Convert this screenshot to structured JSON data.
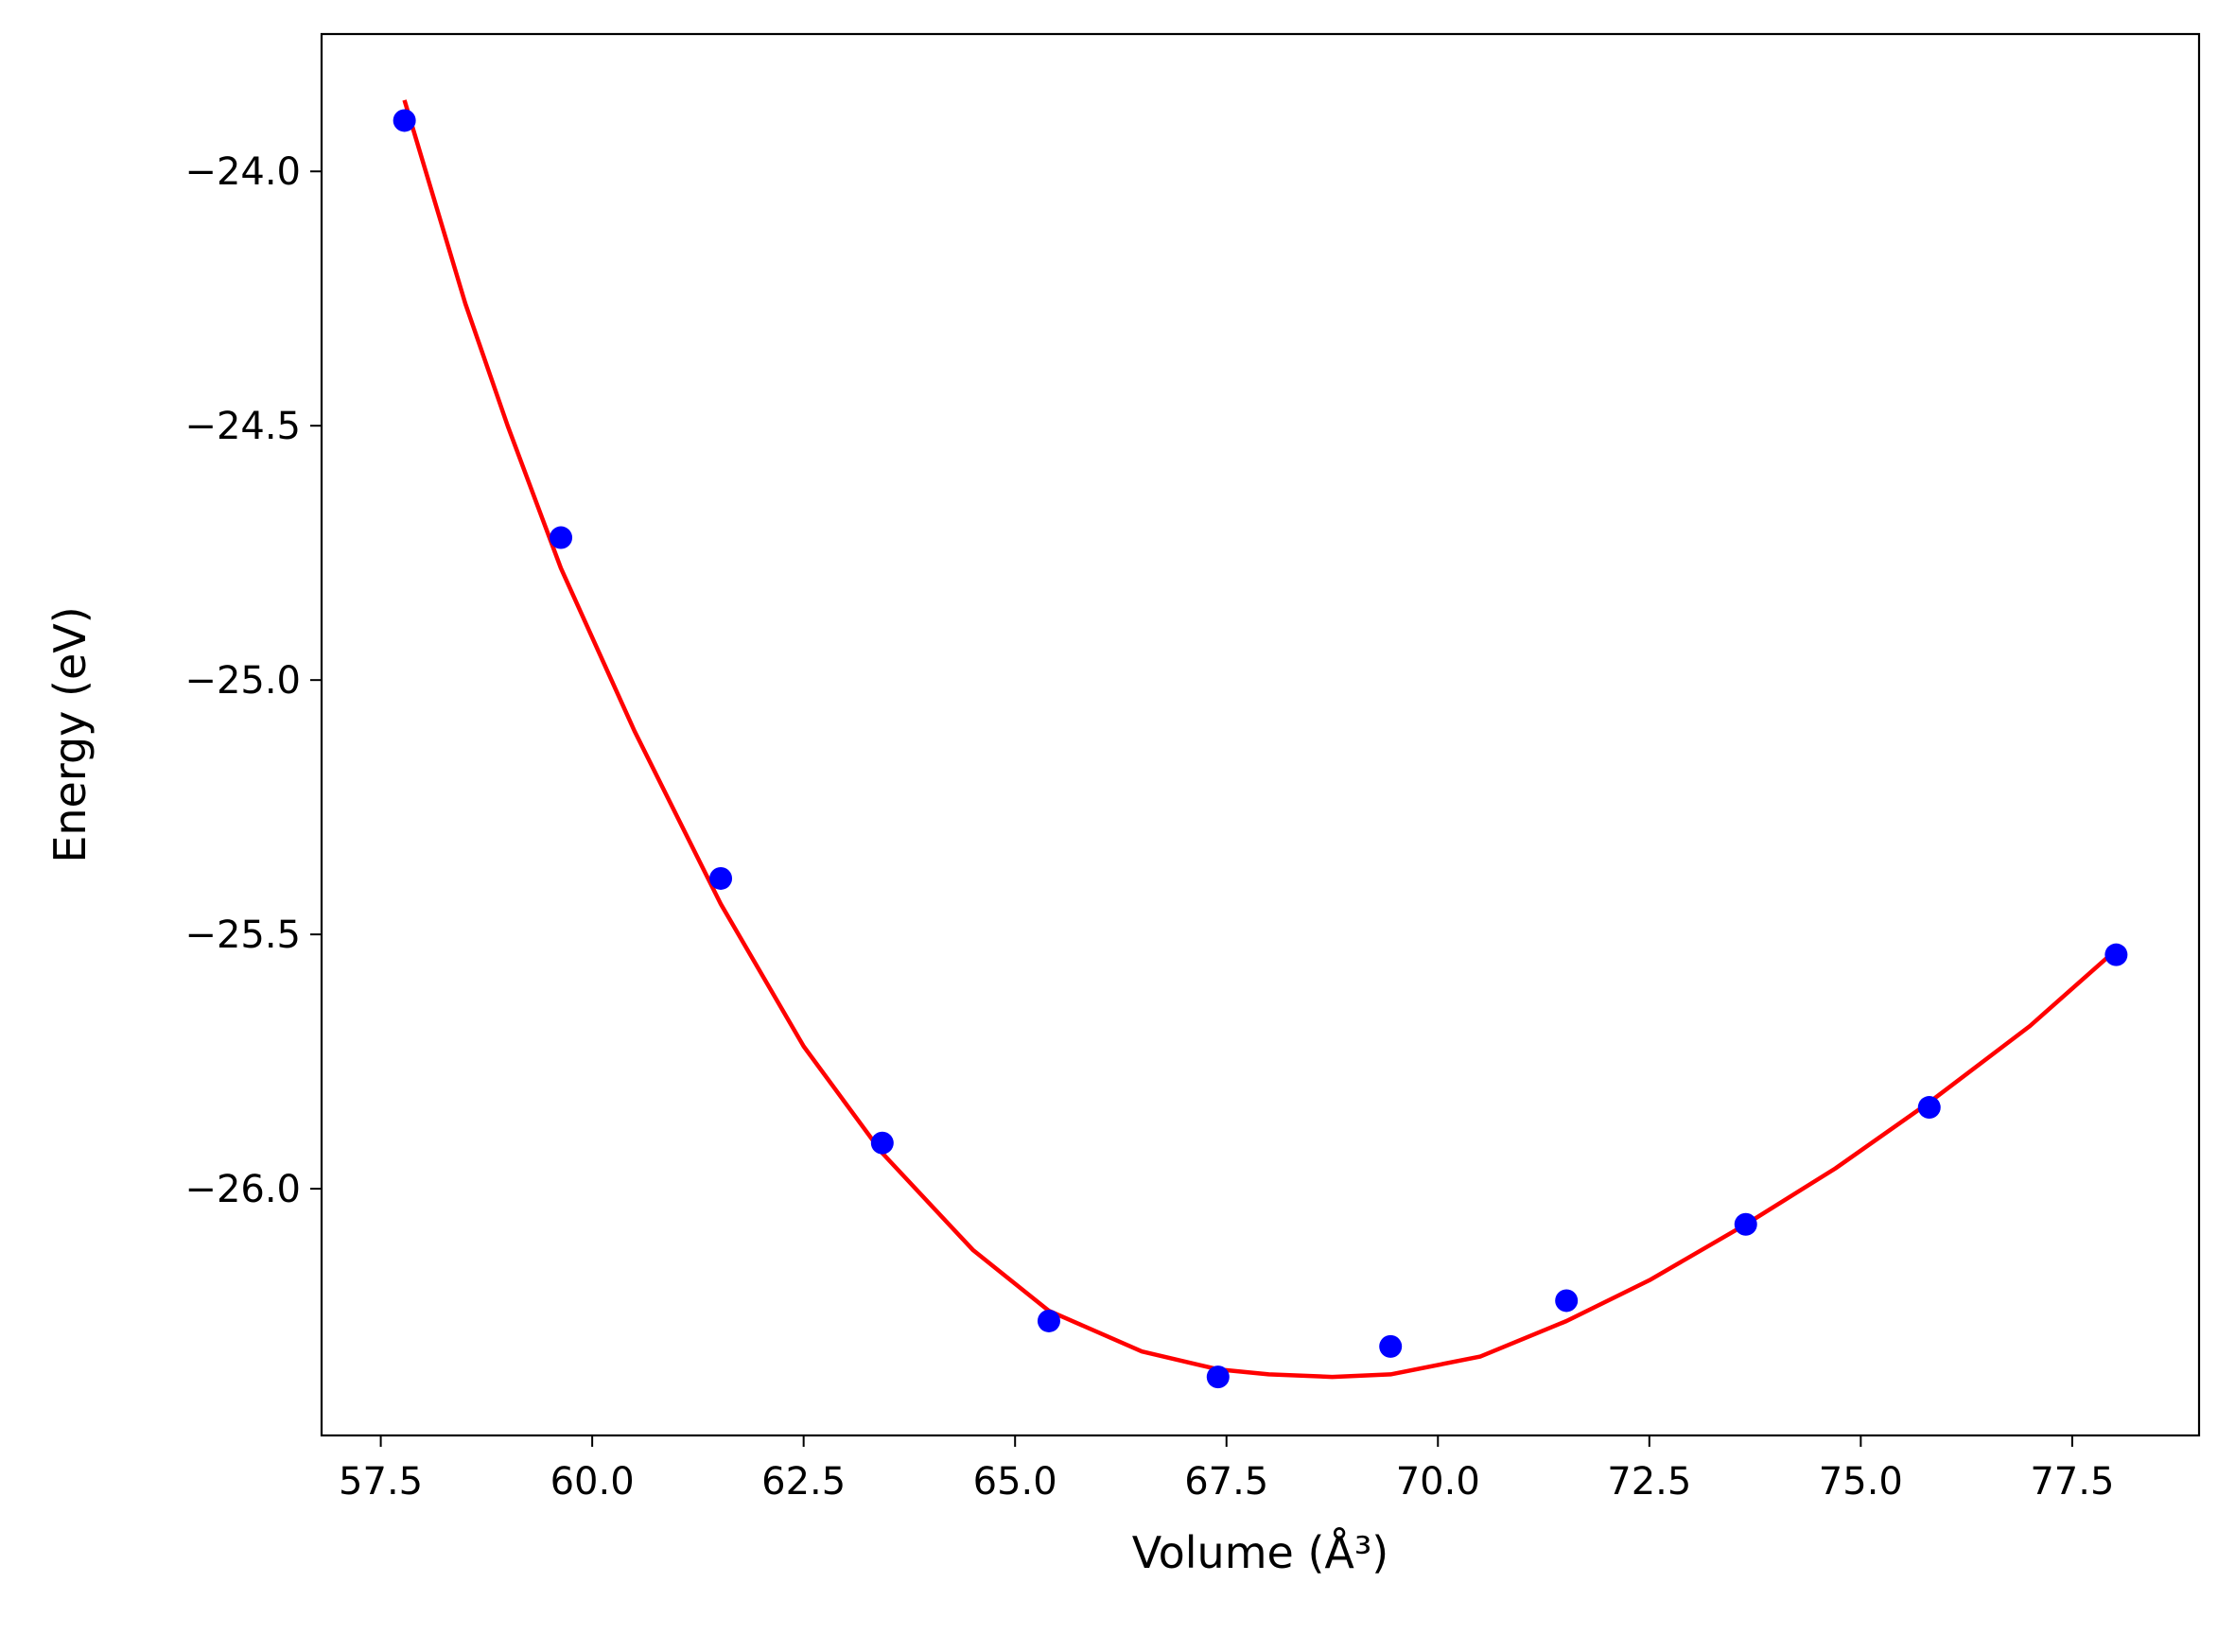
{
  "chart_data": {
    "type": "scatter",
    "title": "",
    "xlabel": "Volume (Å³)",
    "ylabel": "Energy (eV)",
    "xlim": [
      56.8,
      79.0
    ],
    "ylim": [
      -26.485,
      -23.73
    ],
    "grid": false,
    "x_ticks": [
      57.5,
      60.0,
      62.5,
      65.0,
      67.5,
      70.0,
      72.5,
      75.0,
      77.5
    ],
    "x_tick_labels": [
      "57.5",
      "60.0",
      "62.5",
      "65.0",
      "67.5",
      "70.0",
      "72.5",
      "75.0",
      "77.5"
    ],
    "y_ticks": [
      -24.0,
      -24.5,
      -25.0,
      -25.5,
      -26.0
    ],
    "y_tick_labels": [
      "−24.0",
      "−24.5",
      "−25.0",
      "−25.5",
      "−26.0"
    ],
    "series": [
      {
        "kind": "scatter",
        "color": "#0000ff",
        "x": [
          57.78,
          59.63,
          61.52,
          63.43,
          65.4,
          67.4,
          69.44,
          71.52,
          73.64,
          75.81,
          78.02
        ],
        "y": [
          -23.9,
          -24.72,
          -25.39,
          -25.91,
          -26.26,
          -26.37,
          -26.31,
          -26.22,
          -26.07,
          -25.84,
          -25.54
        ]
      },
      {
        "kind": "line",
        "color": "#ff0000",
        "x": [
          57.78,
          58.5,
          59.0,
          59.63,
          60.5,
          61.52,
          62.5,
          63.43,
          64.5,
          65.4,
          66.5,
          67.4,
          68.0,
          68.75,
          69.44,
          70.5,
          71.52,
          72.5,
          73.64,
          74.7,
          75.81,
          77.0,
          78.02
        ],
        "y": [
          -23.86,
          -24.26,
          -24.5,
          -24.78,
          -25.1,
          -25.44,
          -25.72,
          -25.93,
          -26.12,
          -26.24,
          -26.32,
          -26.355,
          -26.365,
          -26.37,
          -26.365,
          -26.33,
          -26.26,
          -26.18,
          -26.07,
          -25.96,
          -25.83,
          -25.68,
          -25.53
        ]
      }
    ]
  }
}
